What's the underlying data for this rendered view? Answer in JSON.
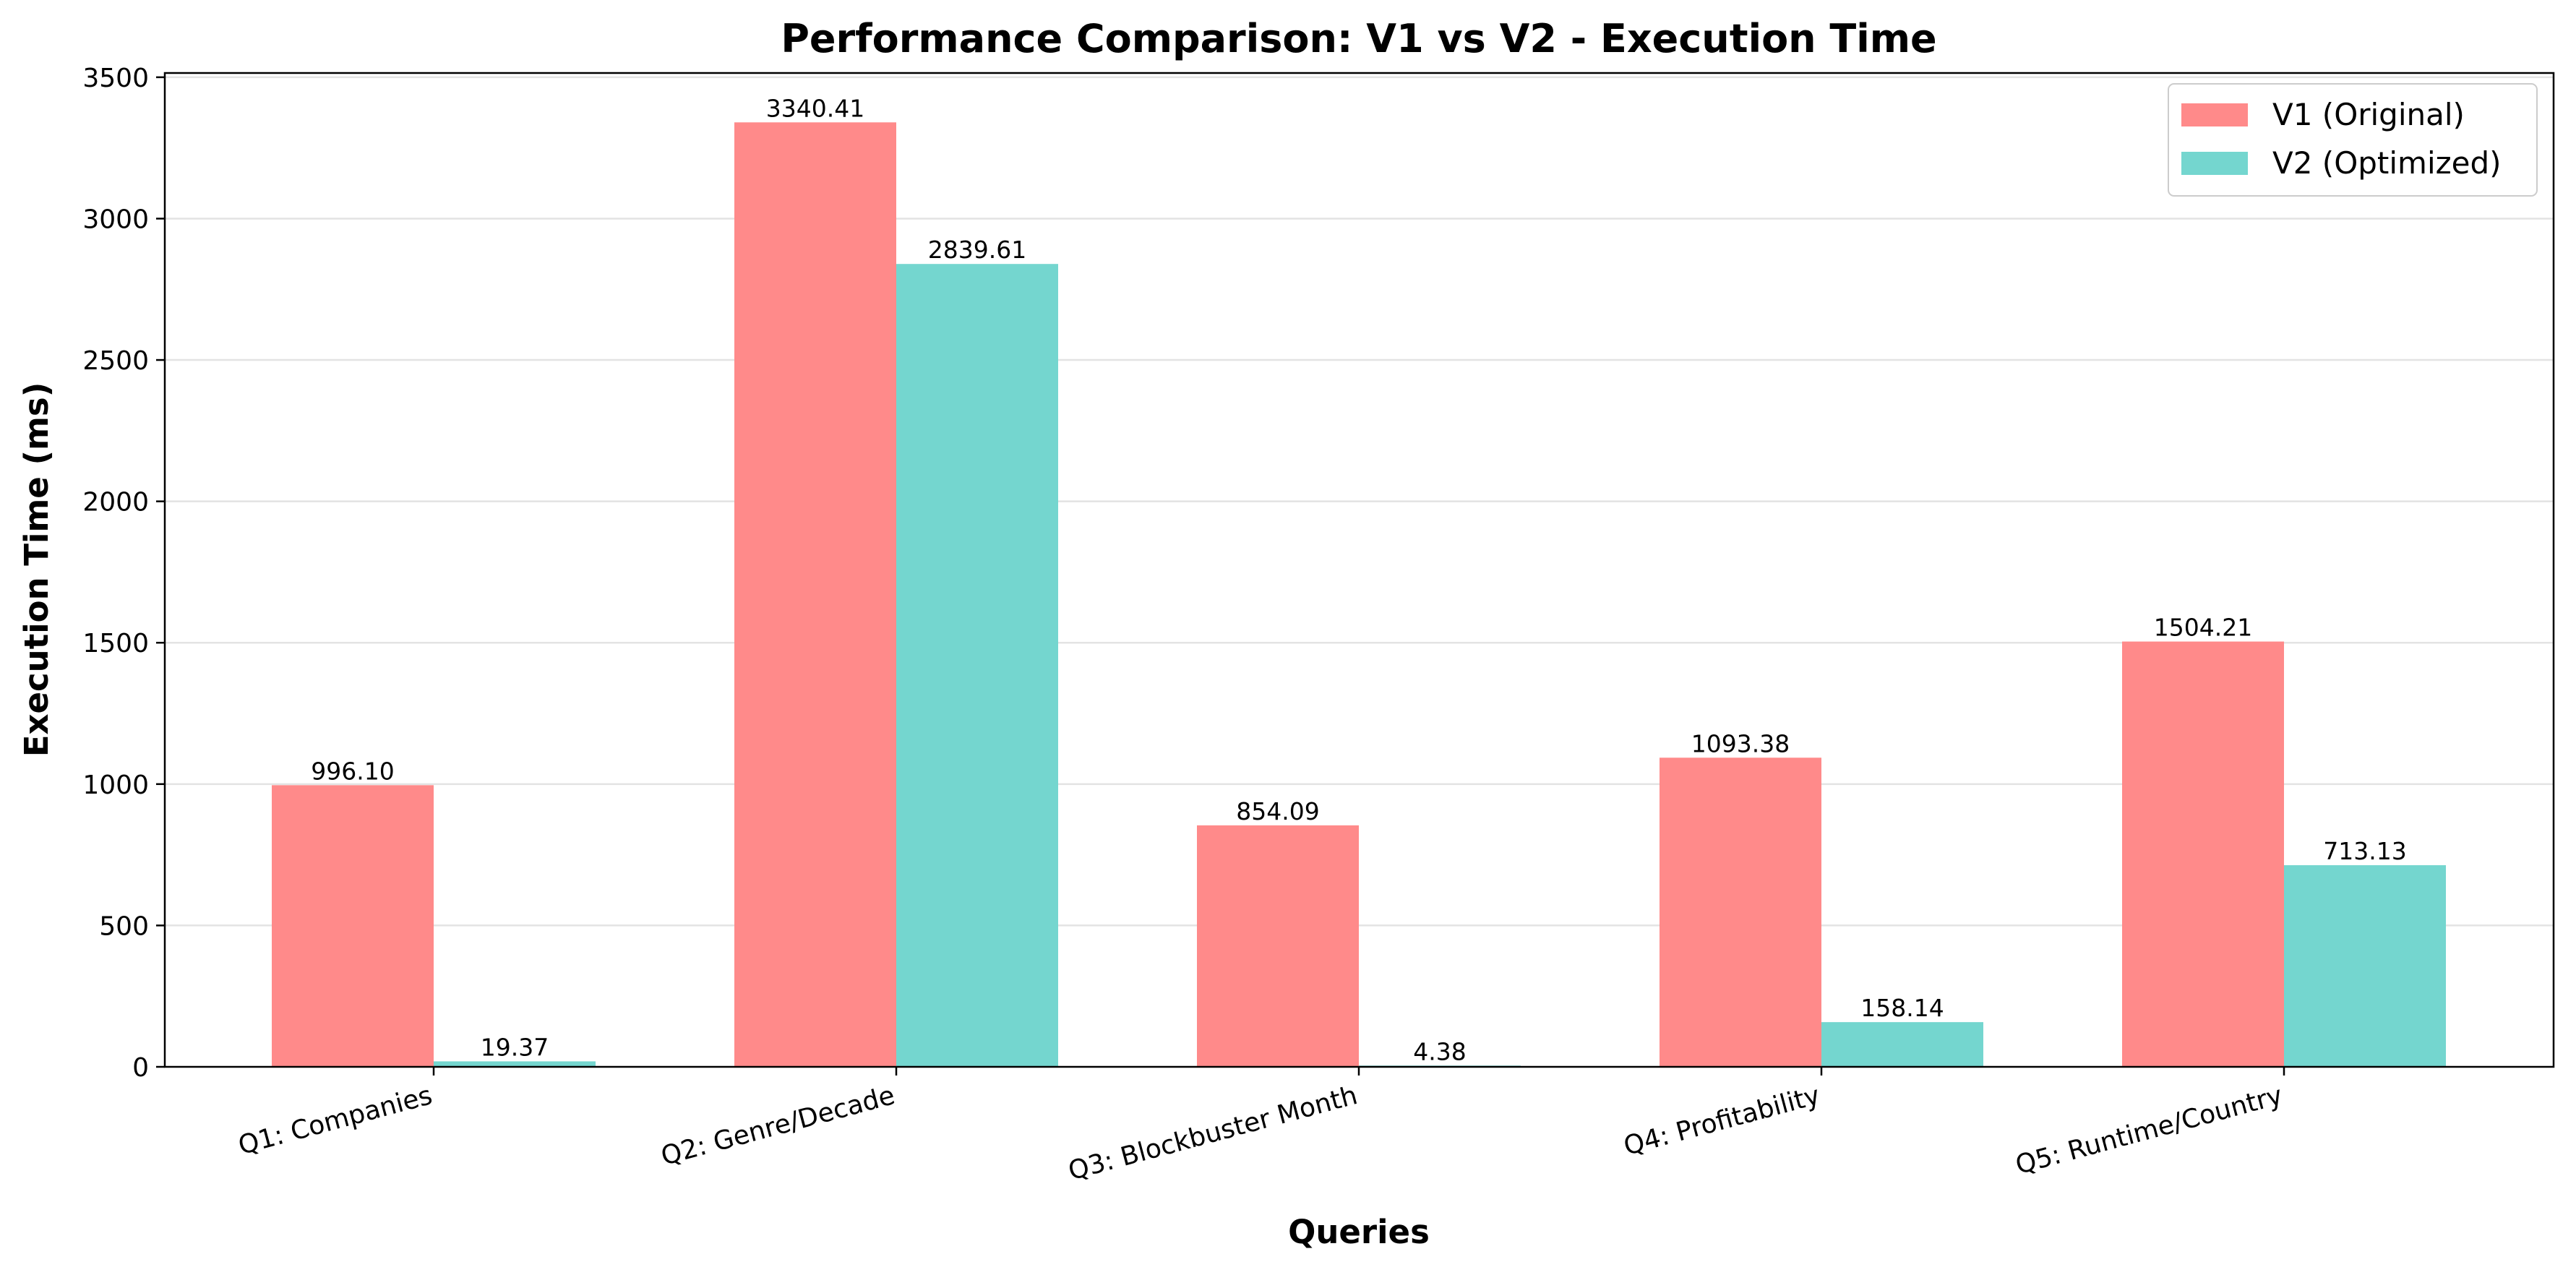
{
  "chart_data": {
    "type": "bar",
    "title": "Performance Comparison: V1 vs V2 - Execution Time",
    "xlabel": "Queries",
    "ylabel": "Execution Time (ms)",
    "categories": [
      "Q1: Companies",
      "Q2: Genre/Decade",
      "Q3: Blockbuster Month",
      "Q4: Profitability",
      "Q5: Runtime/Country"
    ],
    "series": [
      {
        "name": "V1 (Original)",
        "color": "#ff8a8a",
        "values": [
          996.1,
          3340.41,
          854.09,
          1093.38,
          1504.21
        ],
        "labels": [
          "996.10",
          "3340.41",
          "854.09",
          "1093.38",
          "1504.21"
        ]
      },
      {
        "name": "V2 (Optimized)",
        "color": "#74d6cf",
        "values": [
          19.37,
          2839.61,
          4.38,
          158.14,
          713.13
        ],
        "labels": [
          "19.37",
          "2839.61",
          "4.38",
          "158.14",
          "713.13"
        ]
      }
    ],
    "ylim": [
      0,
      3515
    ],
    "yticks": [
      0,
      500,
      1000,
      1500,
      2000,
      2500,
      3000,
      3500
    ],
    "grid": "y",
    "legend_position": "top-right"
  }
}
